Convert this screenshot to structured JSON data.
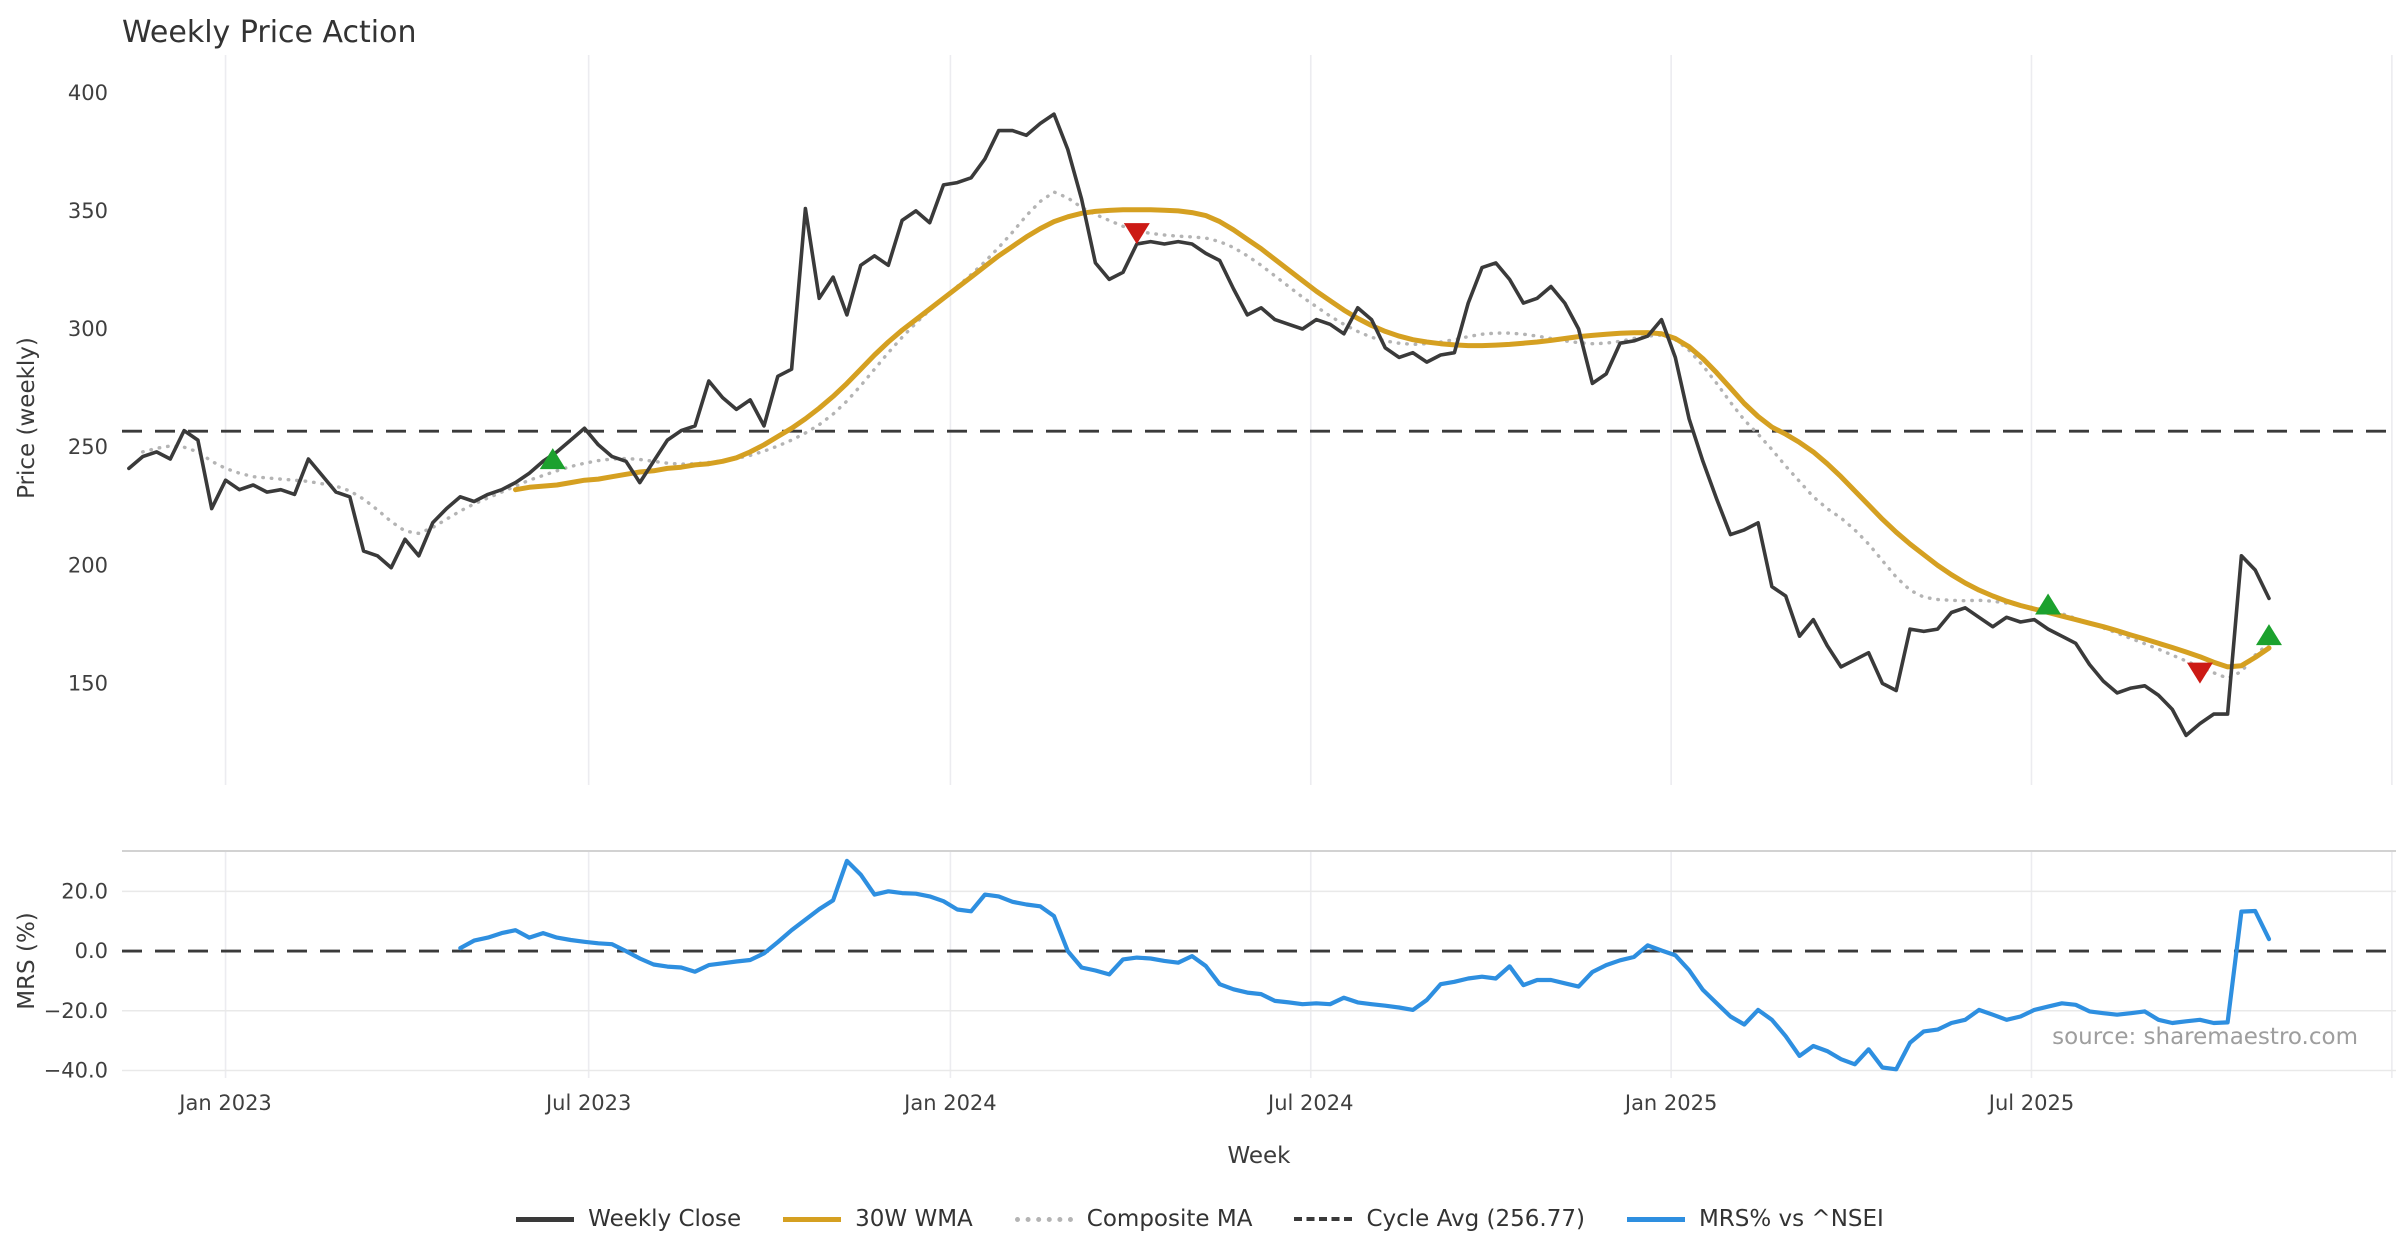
{
  "title": "Weekly Price Action",
  "watermark": "source: sharemaestro.com",
  "x_axis": {
    "label": "Week"
  },
  "price_panel": {
    "ylabel": "Price (weekly)"
  },
  "mrs_panel": {
    "ylabel": "MRS (%)"
  },
  "legend": [
    {
      "name": "weekly-close",
      "label": "Weekly Close",
      "color": "#3a3a3a",
      "style": "solid"
    },
    {
      "name": "wma-30w",
      "label": "30W WMA",
      "color": "#d5a021",
      "style": "solid"
    },
    {
      "name": "composite-ma",
      "label": "Composite MA",
      "color": "#b4b4b4",
      "style": "dotted"
    },
    {
      "name": "cycle-avg",
      "label": "Cycle Avg (256.77)",
      "color": "#3a3a3a",
      "style": "dashed"
    },
    {
      "name": "mrs",
      "label": "MRS% vs ^NSEI",
      "color": "#2e8fe0",
      "style": "solid"
    }
  ],
  "colors": {
    "close": "#3a3a3a",
    "wma": "#d5a021",
    "composite": "#b4b4b4",
    "cycle_dash": "#3a3a3a",
    "mrs": "#2e8fe0",
    "buy": "#1ca12e",
    "sell": "#cc1a15",
    "gridline": "#ececf0",
    "mrs_grid": "#e9e9e9",
    "panel_border": "#d2d2d2"
  },
  "chart_data": {
    "type": "line",
    "title": "Weekly Price Action",
    "xlabel": "Week",
    "x_unit": "week_index",
    "xlim": [
      -0.5,
      164.2
    ],
    "x_ticks": [
      {
        "week": 7.0,
        "label": "Jan 2023"
      },
      {
        "week": 33.3,
        "label": "Jul 2023"
      },
      {
        "week": 59.5,
        "label": "Jan 2024"
      },
      {
        "week": 85.6,
        "label": "Jul 2024"
      },
      {
        "week": 111.7,
        "label": "Jan 2025"
      },
      {
        "week": 137.8,
        "label": "Jul 2025"
      },
      {
        "week": 163.9,
        "label": ""
      }
    ],
    "panels": [
      {
        "id": "price",
        "ylabel": "Price (weekly)",
        "ylim": [
          107,
          416
        ],
        "grid_horizontal": false,
        "y_ticks": [
          {
            "v": 400,
            "label": "400"
          },
          {
            "v": 350,
            "label": "350"
          },
          {
            "v": 300,
            "label": "300"
          },
          {
            "v": 250,
            "label": "250"
          },
          {
            "v": 200,
            "label": "200"
          },
          {
            "v": 150,
            "label": "150"
          }
        ],
        "reference_line": {
          "name": "Cycle Avg",
          "value": 256.77,
          "style": "dashed",
          "color": "#3a3a3a"
        },
        "series": [
          {
            "name": "Weekly Close",
            "color": "#3a3a3a",
            "width": 3.6,
            "style": "solid",
            "start_week": 0,
            "values": [
              241,
              246,
              248,
              245,
              257,
              253,
              224,
              236,
              232,
              234,
              231,
              232,
              230,
              245,
              238,
              231,
              229,
              206,
              204,
              199,
              211,
              204,
              218,
              224,
              229,
              227,
              230,
              232,
              235,
              239,
              244,
              248,
              253,
              258,
              251,
              246,
              244,
              235,
              244,
              253,
              257,
              259,
              278,
              271,
              266,
              270,
              259,
              280,
              283,
              351,
              313,
              322,
              306,
              327,
              331,
              327,
              346,
              350,
              345,
              361,
              362,
              364,
              372,
              384,
              384,
              382,
              387,
              391,
              376,
              355,
              328,
              321,
              324,
              336,
              337,
              336,
              337,
              336,
              332,
              329,
              317,
              306,
              309,
              304,
              302,
              300,
              304,
              302,
              298,
              309,
              304,
              292,
              288,
              290,
              286,
              289,
              290,
              311,
              326,
              328,
              321,
              311,
              313,
              318,
              311,
              300,
              277,
              281,
              294,
              295,
              297,
              304,
              288,
              262,
              244,
              228,
              213,
              215,
              218,
              191,
              187,
              170,
              177,
              166,
              157,
              160,
              163,
              150,
              147,
              173,
              172,
              173,
              180,
              182,
              178,
              174,
              178,
              176,
              177,
              173,
              170,
              167,
              158,
              151,
              146,
              148,
              149,
              145,
              139,
              128,
              133,
              137,
              137,
              204,
              198,
              186
            ]
          },
          {
            "name": "30W WMA",
            "color": "#d5a021",
            "width": 5,
            "style": "solid",
            "start_week": 28,
            "values": [
              232,
              233,
              233.5,
              234,
              235,
              236,
              236.5,
              237.5,
              238.5,
              239.5,
              240,
              241,
              241.5,
              242.5,
              243,
              244,
              245.5,
              248,
              251,
              254.5,
              258,
              262,
              266.5,
              271.5,
              277,
              283,
              289,
              294.5,
              299.5,
              304,
              308.5,
              313,
              317.5,
              322,
              326.5,
              331,
              335,
              339,
              342.5,
              345.5,
              347.5,
              349,
              349.8,
              350.2,
              350.5,
              350.5,
              350.5,
              350.3,
              350,
              349.3,
              348,
              345.5,
              342,
              338,
              334,
              329.5,
              325,
              320.5,
              316,
              312,
              308,
              304.5,
              301.5,
              299,
              297,
              295.5,
              294.5,
              293.8,
              293.3,
              293,
              293,
              293.2,
              293.5,
              294,
              294.5,
              295.2,
              296,
              296.8,
              297.3,
              297.8,
              298.2,
              298.4,
              298.5,
              298,
              296,
              292.5,
              287.5,
              281.5,
              275,
              268.5,
              263,
              258.5,
              255.5,
              252,
              248,
              243,
              237.5,
              231.5,
              225.5,
              219.5,
              214,
              209,
              204.5,
              200,
              196,
              192.5,
              189.5,
              187,
              184.8,
              183,
              181.5,
              180,
              178.5,
              177,
              175.5,
              174,
              172.3,
              170.5,
              168.8,
              167,
              165.2,
              163.3,
              161.3,
              159,
              157,
              157.5,
              161,
              165
            ]
          },
          {
            "name": "Composite MA",
            "color": "#b4b4b4",
            "width": 3.4,
            "style": "dotted",
            "start_week": 1,
            "values": [
              248,
              249.5,
              250.5,
              250,
              248,
              244,
              241,
              239,
              237.5,
              237,
              236.5,
              236,
              235.5,
              234.5,
              233.5,
              231.5,
              228,
              223.5,
              218.5,
              214.5,
              213.5,
              216,
              219.5,
              223,
              226,
              228.5,
              231,
              233.5,
              236,
              238,
              240,
              241.8,
              243.2,
              244.3,
              245,
              245.2,
              244.8,
              244,
              243.2,
              242.8,
              243,
              243.5,
              244.2,
              245.2,
              246.5,
              248.3,
              250.5,
              253,
              256,
              259.5,
              264,
              269.5,
              276,
              283,
              290,
              296.5,
              302.5,
              308,
              313,
              318,
              323,
              328.5,
              334.5,
              341,
              348,
              354,
              358,
              355.5,
              351.5,
              348.5,
              346,
              343.5,
              341.5,
              340.5,
              339.8,
              339.3,
              339,
              338.5,
              337,
              334.5,
              331,
              327,
              322.5,
              318,
              313.5,
              309.5,
              305.5,
              302,
              299,
              296.5,
              295,
              294,
              293.5,
              293.8,
              294.5,
              295.5,
              296.8,
              297.8,
              298.3,
              298.3,
              297.8,
              297,
              296,
              295,
              294.2,
              293.8,
              294,
              294.8,
              296,
              297,
              297.5,
              295.5,
              291,
              284.5,
              277,
              269,
              261.5,
              255.5,
              249,
              242,
              235.5,
              229,
              224,
              220,
              215,
              209,
              202,
              195,
              189.5,
              186.5,
              185.5,
              185.2,
              185,
              185.2,
              184.8,
              184,
              183,
              182,
              180.8,
              179.5,
              177.5,
              175.5,
              173.5,
              171.3,
              169,
              166.8,
              164.5,
              162,
              159.5,
              157,
              154.5,
              152.2,
              155,
              162,
              167
            ]
          }
        ],
        "markers": {
          "buy": {
            "color": "#1ca12e",
            "shape": "triangle-up",
            "points": [
              {
                "week": 30.7,
                "price": 244.5
              },
              {
                "week": 139,
                "price": 183
              },
              {
                "week": 155,
                "price": 170
              }
            ]
          },
          "sell": {
            "color": "#cc1a15",
            "shape": "triangle-down",
            "points": [
              {
                "week": 73,
                "price": 341
              },
              {
                "week": 150,
                "price": 155
              }
            ]
          }
        }
      },
      {
        "id": "mrs",
        "ylabel": "MRS (%)",
        "ylim": [
          -42.5,
          33.5
        ],
        "grid_horizontal": true,
        "y_ticks": [
          {
            "v": 20,
            "label": "20.0"
          },
          {
            "v": 0,
            "label": "0.0"
          },
          {
            "v": -20,
            "label": "−20.0"
          },
          {
            "v": -40,
            "label": "−40.0"
          }
        ],
        "reference_line": {
          "name": "Zero",
          "value": 0,
          "style": "dashed",
          "color": "#3a3a3a"
        },
        "series": [
          {
            "name": "MRS% vs ^NSEI",
            "color": "#2e8fe0",
            "width": 4.2,
            "style": "solid",
            "start_week": 24,
            "values": [
              1,
              3.5,
              4.5,
              6,
              7,
              4.5,
              6,
              4.5,
              3.7,
              3.1,
              2.6,
              2.3,
              0,
              -2.5,
              -4.5,
              -5.2,
              -5.5,
              -6.9,
              -4.7,
              -4.1,
              -3.5,
              -3,
              -0.8,
              3,
              7,
              10.5,
              14,
              17,
              30.2,
              25.6,
              18.9,
              20,
              19.4,
              19.2,
              18.3,
              16.7,
              13.9,
              13.3,
              18.9,
              18.3,
              16.5,
              15.6,
              15,
              11.7,
              0,
              -5.5,
              -6.5,
              -7.8,
              -2.8,
              -2.2,
              -2.5,
              -3.3,
              -3.9,
              -1.7,
              -5,
              -11.1,
              -12.8,
              -13.9,
              -14.4,
              -16.7,
              -17.2,
              -17.8,
              -17.5,
              -17.8,
              -15.6,
              -17.2,
              -17.8,
              -18.3,
              -18.9,
              -19.7,
              -16.4,
              -11.1,
              -10.3,
              -9.2,
              -8.6,
              -9.2,
              -5.1,
              -11.4,
              -9.7,
              -9.7,
              -10.8,
              -11.9,
              -7,
              -4.7,
              -3.1,
              -2,
              1.9,
              0.2,
              -1.4,
              -6.4,
              -13,
              -17.5,
              -21.9,
              -24.6,
              -19.7,
              -23,
              -28.5,
              -35.1,
              -31.8,
              -33.5,
              -36.2,
              -37.9,
              -32.9,
              -39,
              -39.6,
              -30.7,
              -26.9,
              -26.3,
              -24.1,
              -23,
              -19.7,
              -21.3,
              -23,
              -21.9,
              -19.7,
              -18.6,
              -17.5,
              -18,
              -20.2,
              -20.8,
              -21.3,
              -20.8,
              -20.2,
              -23,
              -24.1,
              -23.5,
              -23,
              -24.1,
              -23.9,
              13.2,
              13.4,
              4
            ]
          }
        ]
      }
    ]
  }
}
